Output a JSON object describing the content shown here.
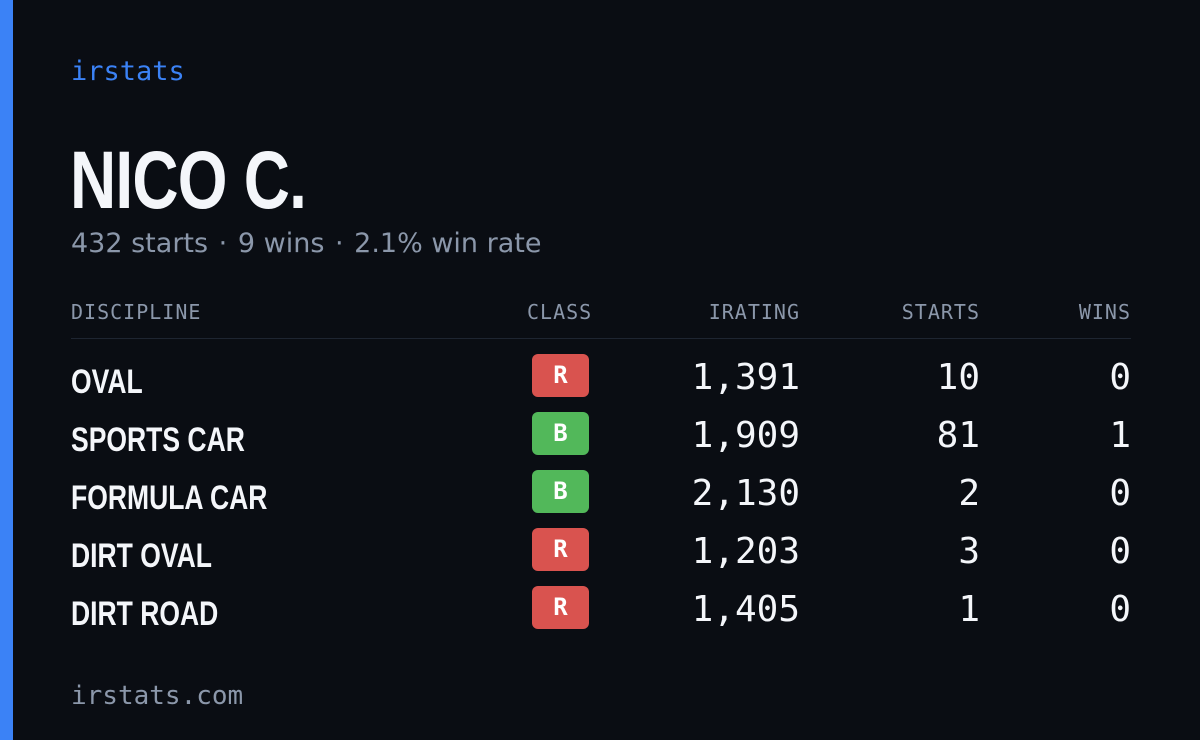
{
  "brand": "irstats",
  "driver": {
    "name": "NICO C.",
    "starts_text": "432 starts",
    "wins_text": "9 wins",
    "win_rate_text": "2.1% win rate",
    "separator": "·"
  },
  "table": {
    "headers": {
      "discipline": "DISCIPLINE",
      "class": "CLASS",
      "irating": "IRATING",
      "starts": "STARTS",
      "wins": "WINS"
    },
    "rows": [
      {
        "discipline": "OVAL",
        "class": "R",
        "irating": "1,391",
        "starts": "10",
        "wins": "0"
      },
      {
        "discipline": "SPORTS CAR",
        "class": "B",
        "irating": "1,909",
        "starts": "81",
        "wins": "1"
      },
      {
        "discipline": "FORMULA CAR",
        "class": "B",
        "irating": "2,130",
        "starts": "2",
        "wins": "0"
      },
      {
        "discipline": "DIRT OVAL",
        "class": "R",
        "irating": "1,203",
        "starts": "3",
        "wins": "0"
      },
      {
        "discipline": "DIRT ROAD",
        "class": "R",
        "irating": "1,405",
        "starts": "1",
        "wins": "0"
      }
    ]
  },
  "colors": {
    "background": "#0a0d13",
    "accent": "#3b82f6",
    "class_r": "#d9534f",
    "class_b": "#52b85a",
    "muted_text": "#8b97aa",
    "primary_text": "#f4f6fa"
  },
  "footer": {
    "url": "irstats.com"
  }
}
